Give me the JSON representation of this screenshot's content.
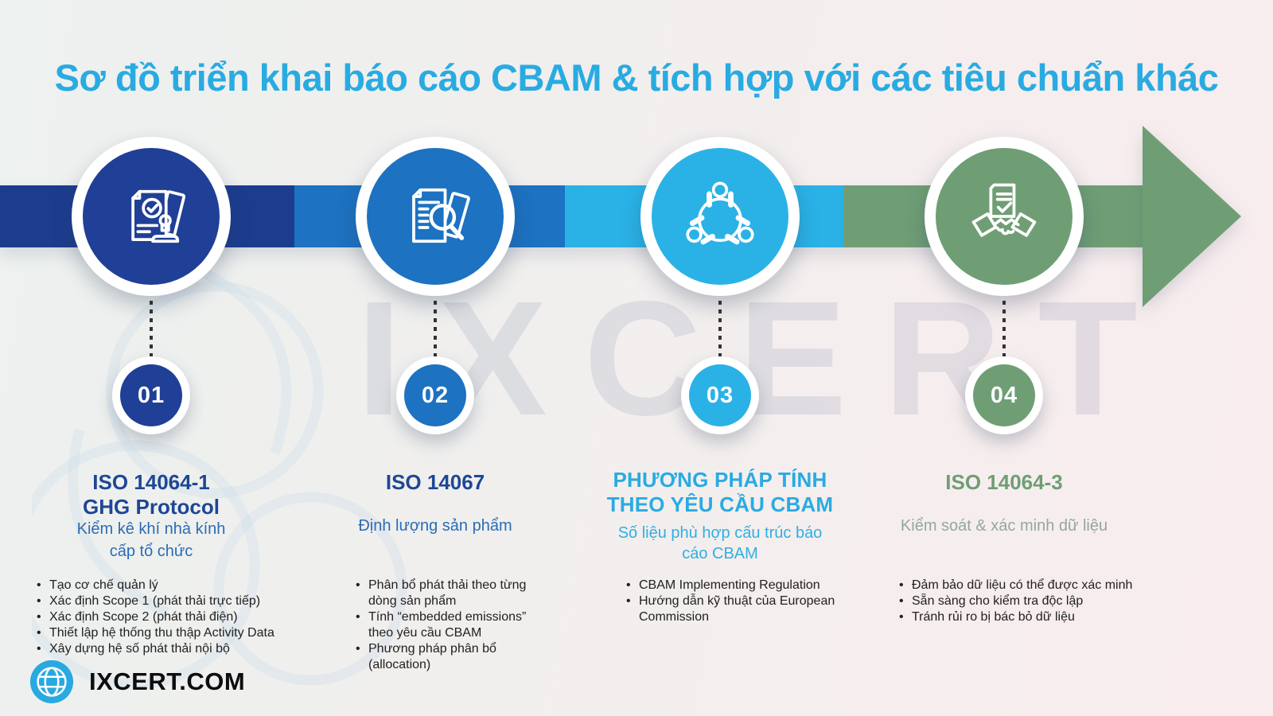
{
  "title": "Sơ đồ triển khai báo cáo CBAM & tích hợp với các tiêu chuẩn khác",
  "watermark_text": "IXCERT",
  "colors": {
    "title_accent": "#29abe2",
    "step1": "#203f96",
    "step2": "#1d72c1",
    "step3": "#2ab2e7",
    "step4": "#6f9e75",
    "heading_blue": "#1d4796",
    "subtitle_blue": "#2a6cb5",
    "subtitle_green": "#93a89a",
    "body_text": "#212121"
  },
  "steps": [
    {
      "number": "01",
      "icon": "document-stamp-icon",
      "color": "#203f96",
      "heading_lines": [
        "ISO 14064-1",
        "GHG Protocol"
      ],
      "subtitle_lines": [
        "Kiểm kê khí nhà kính",
        "cấp tổ chức"
      ],
      "bullets": [
        "Tạo cơ chế quản lý",
        "Xác định Scope 1 (phát thải trực tiếp)",
        "Xác định Scope 2 (phát thải điện)",
        "Thiết lập hệ thống thu thập Activity Data",
        "Xây dựng hệ số phát thải nội bộ"
      ]
    },
    {
      "number": "02",
      "icon": "document-search-icon",
      "color": "#1d72c1",
      "heading_lines": [
        "ISO 14067"
      ],
      "subtitle_lines": [
        "Định lượng sản phẩm"
      ],
      "bullets": [
        "Phân bổ phát thải theo từng dòng sản phẩm",
        "Tính “embedded emissions” theo yêu cầu CBAM",
        "Phương pháp phân bổ (allocation)"
      ]
    },
    {
      "number": "03",
      "icon": "team-meeting-icon",
      "color": "#2ab2e7",
      "heading_lines": [
        "PHƯƠNG PHÁP TÍNH",
        "THEO YÊU CẦU CBAM"
      ],
      "subtitle_lines": [
        "Số liệu phù hợp cấu trúc báo",
        "cáo CBAM"
      ],
      "bullets": [
        "CBAM Implementing Regulation",
        "Hướng dẫn kỹ thuật của European Commission"
      ]
    },
    {
      "number": "04",
      "icon": "handshake-document-icon",
      "color": "#6f9e75",
      "heading_lines": [
        "ISO 14064-3"
      ],
      "subtitle_lines": [
        "Kiểm soát & xác minh dữ liệu"
      ],
      "bullets": [
        "Đảm bảo dữ liệu có thể được xác minh",
        "Sẵn sàng cho kiểm tra độc lập",
        "Tránh rủi ro bị bác bỏ dữ liệu"
      ]
    }
  ],
  "footer": {
    "brand": "IXCERT.COM",
    "icon": "globe-icon"
  }
}
